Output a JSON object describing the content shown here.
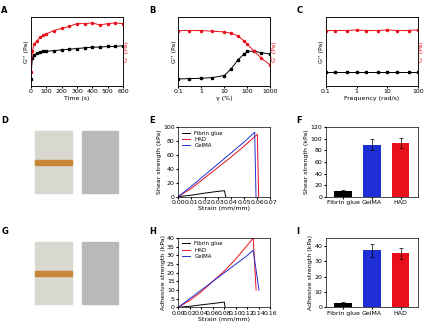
{
  "chart_data": [
    {
      "panel": "A",
      "type": "line",
      "x_label": "Time (s)",
      "y_label": "G'' (Pa)",
      "y2_label": "G' (Pa)",
      "xlim": [
        0,
        600
      ],
      "xticks": [
        0,
        100,
        200,
        300,
        400,
        500,
        600
      ],
      "ylim": [
        0,
        10
      ],
      "y2lim": [
        0,
        10
      ],
      "tick_labels": "x",
      "series": [
        {
          "color": "#000000",
          "marker": "square",
          "x": [
            0,
            10,
            20,
            40,
            60,
            80,
            100,
            150,
            200,
            250,
            300,
            350,
            400,
            450,
            500,
            550,
            600
          ],
          "values": [
            1,
            4,
            4.5,
            4.7,
            4.9,
            5,
            5,
            5.1,
            5.2,
            5.3,
            5.4,
            5.5,
            5.6,
            5.6,
            5.7,
            5.7,
            5.8
          ]
        },
        {
          "color": "#e8101a",
          "marker": "circle",
          "axis": "y2",
          "x": [
            0,
            10,
            20,
            40,
            60,
            80,
            100,
            150,
            200,
            250,
            300,
            350,
            400,
            450,
            500,
            550,
            600
          ],
          "values": [
            2,
            5,
            6,
            6.5,
            7,
            7.3,
            7.5,
            8,
            8.3,
            8.6,
            9,
            9,
            9.1,
            8.8,
            9,
            9.1,
            9
          ]
        }
      ]
    },
    {
      "panel": "B",
      "type": "line",
      "log": "x",
      "x_label": "γ (%)",
      "y_label": "G'' (Pa)",
      "y2_label": "G' (Pa)",
      "xlim": [
        0.1,
        1000
      ],
      "xticks": [
        0.1,
        1,
        10,
        100,
        1000
      ],
      "ylim": [
        0,
        10
      ],
      "y2lim": [
        0,
        10
      ],
      "tick_labels": "x",
      "series": [
        {
          "color": "#000000",
          "marker": "square",
          "x": [
            0.1,
            0.3,
            1,
            3,
            10,
            20,
            40,
            70,
            100,
            200,
            400,
            1000
          ],
          "values": [
            1,
            1.05,
            1.1,
            1.2,
            1.5,
            2.5,
            3.8,
            4.6,
            5,
            5,
            4.8,
            4.6
          ]
        },
        {
          "color": "#e8101a",
          "marker": "circle",
          "axis": "y2",
          "x": [
            0.1,
            0.3,
            1,
            3,
            10,
            20,
            40,
            70,
            100,
            200,
            400,
            1000
          ],
          "values": [
            8,
            8,
            8,
            7.9,
            7.8,
            7.6,
            7.2,
            6.5,
            6,
            5,
            4,
            3
          ]
        }
      ]
    },
    {
      "panel": "C",
      "type": "line",
      "log": "x",
      "x_label": "Frequency (rad/s)",
      "y_label": "G'' (Pa)",
      "y2_label": "G' (Pa)",
      "xlim": [
        0.1,
        100
      ],
      "xticks": [
        0.1,
        1,
        10,
        100
      ],
      "ylim": [
        0,
        10
      ],
      "y2lim": [
        0,
        10
      ],
      "tick_labels": "x",
      "series": [
        {
          "color": "#000000",
          "marker": "square",
          "x": [
            0.1,
            0.2,
            0.5,
            1,
            2,
            5,
            10,
            20,
            50,
            100
          ],
          "values": [
            2,
            2,
            2,
            2,
            2,
            2,
            2,
            2,
            2,
            2
          ]
        },
        {
          "color": "#e8101a",
          "marker": "circle",
          "axis": "y2",
          "x": [
            0.1,
            0.2,
            0.5,
            1,
            2,
            5,
            10,
            20,
            50,
            100
          ],
          "values": [
            8,
            8,
            8,
            8.1,
            8,
            8,
            8.1,
            8,
            8,
            8.1
          ]
        }
      ]
    },
    {
      "panel": "D",
      "type": "image"
    },
    {
      "panel": "E",
      "type": "line",
      "x_label": "Strain (mm/mm)",
      "y_label": "Shear strength (kPa)",
      "legend": "upper left",
      "xlim": [
        0,
        0.07
      ],
      "xticks": [
        {
          "value": 0,
          "label": "0.00"
        },
        0.01,
        0.02,
        0.03,
        0.04,
        0.05,
        0.06,
        0.07
      ],
      "ylim": [
        0,
        100
      ],
      "yticks": [
        0,
        20,
        40,
        60,
        80,
        100
      ],
      "series": [
        {
          "name": "Fibrin glue",
          "color": "#000000",
          "x": [
            0,
            0.01,
            0.02,
            0.03,
            0.035,
            0.036
          ],
          "values": [
            0,
            2,
            5,
            7.5,
            8.5,
            0
          ]
        },
        {
          "name": "HAD",
          "color": "#e8101a",
          "x": [
            0,
            0.01,
            0.02,
            0.03,
            0.04,
            0.05,
            0.06,
            0.061
          ],
          "values": [
            0,
            12,
            27,
            42,
            57,
            73,
            90,
            0
          ]
        },
        {
          "name": "GelMA",
          "color": "#1f2fd6",
          "x": [
            0,
            0.01,
            0.02,
            0.03,
            0.04,
            0.05,
            0.058,
            0.059
          ],
          "values": [
            0,
            15,
            31,
            47,
            63,
            79,
            93,
            0
          ]
        }
      ]
    },
    {
      "panel": "F",
      "type": "bar",
      "y_label": "Shear strength (kPa)",
      "categories": [
        "Fibrin glue",
        "GelMA",
        "HAD"
      ],
      "values": [
        9,
        90,
        93
      ],
      "errors": [
        2,
        10,
        8
      ],
      "colors": [
        "#000000",
        "#1f2fd6",
        "#e8101a"
      ],
      "ylim": [
        0,
        120
      ],
      "yticks": [
        0,
        20,
        40,
        60,
        80,
        100,
        120
      ]
    },
    {
      "panel": "G",
      "type": "image"
    },
    {
      "panel": "H",
      "type": "line",
      "x_label": "Strain (mm/mm)",
      "y_label": "Adhesive strength (kPa)",
      "legend": "upper left",
      "xlim": [
        0,
        0.16
      ],
      "xticks": [
        {
          "value": 0,
          "label": "0.00"
        },
        0.02,
        0.04,
        0.06,
        0.08,
        {
          "value": 0.1,
          "label": "0.10"
        },
        0.12,
        0.14,
        0.16
      ],
      "ylim": [
        0,
        40
      ],
      "yticks": [
        0,
        5,
        10,
        15,
        20,
        25,
        30,
        35,
        40
      ],
      "series": [
        {
          "name": "Fibrin glue",
          "color": "#000000",
          "x": [
            0,
            0.02,
            0.04,
            0.06,
            0.08,
            0.081
          ],
          "values": [
            0,
            0.6,
            1.4,
            2.2,
            3,
            0
          ]
        },
        {
          "name": "HAD",
          "color": "#e8101a",
          "x": [
            0,
            0.02,
            0.04,
            0.06,
            0.08,
            0.1,
            0.13,
            0.135
          ],
          "values": [
            0,
            4,
            9,
            15,
            21,
            28,
            40,
            10
          ]
        },
        {
          "name": "GelMA",
          "color": "#1f2fd6",
          "x": [
            0,
            0.02,
            0.04,
            0.06,
            0.08,
            0.1,
            0.12,
            0.13,
            0.14
          ],
          "values": [
            0,
            5,
            10,
            15,
            20,
            25,
            30,
            33,
            10
          ]
        }
      ]
    },
    {
      "panel": "I",
      "type": "bar",
      "y_label": "Adhesive strength (kPa)",
      "categories": [
        "Fibrin glue",
        "GelMA",
        "HAD"
      ],
      "values": [
        3,
        37,
        35
      ],
      "errors": [
        0.5,
        4,
        3.5
      ],
      "colors": [
        "#000000",
        "#1f2fd6",
        "#e8101a"
      ],
      "ylim": [
        0,
        45
      ],
      "yticks": [
        0,
        10,
        20,
        30,
        40
      ]
    }
  ]
}
